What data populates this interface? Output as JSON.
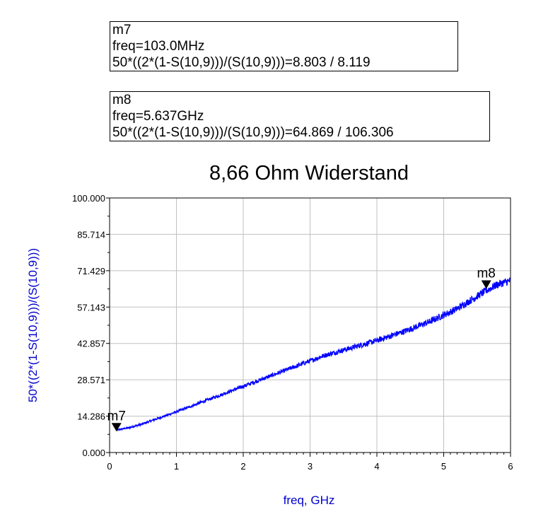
{
  "markers": [
    {
      "name": "m7",
      "freq_line": "freq=103.0MHz",
      "value_line": "50*((2*(1-S(10,9)))/(S(10,9)))=8.803 / 8.119",
      "x": 0.103,
      "y": 8.803
    },
    {
      "name": "m8",
      "freq_line": "freq=5.637GHz",
      "value_line": "50*((2*(1-S(10,9)))/(S(10,9)))=64.869 / 106.306",
      "x": 5.637,
      "y": 64.869
    }
  ],
  "chart_data": {
    "type": "line",
    "title": "8,66 Ohm Widerstand",
    "xlabel": "freq, GHz",
    "ylabel": "50*((2*(1-S(10,9)))/(S(10,9)))",
    "xlim": [
      0,
      6
    ],
    "ylim": [
      0,
      100
    ],
    "x_ticks": [
      "0",
      "1",
      "2",
      "3",
      "4",
      "5",
      "6"
    ],
    "y_ticks": [
      "0.000",
      "14.286",
      "28.571",
      "42.857",
      "57.143",
      "71.429",
      "85.714",
      "100.000"
    ],
    "grid": true,
    "series": [
      {
        "color": "#0000ff",
        "x": [
          0.1,
          0.3,
          0.5,
          0.7,
          1.0,
          1.3,
          1.6,
          2.0,
          2.4,
          2.8,
          3.2,
          3.6,
          4.0,
          4.4,
          4.8,
          5.2,
          5.6,
          5.8,
          6.0
        ],
        "y": [
          8.8,
          9.8,
          11.3,
          13.2,
          16.0,
          19.0,
          22.0,
          26.0,
          30.0,
          34.0,
          38.0,
          41.0,
          44.0,
          47.5,
          51.5,
          56.5,
          63.0,
          66.0,
          67.5
        ]
      }
    ]
  }
}
